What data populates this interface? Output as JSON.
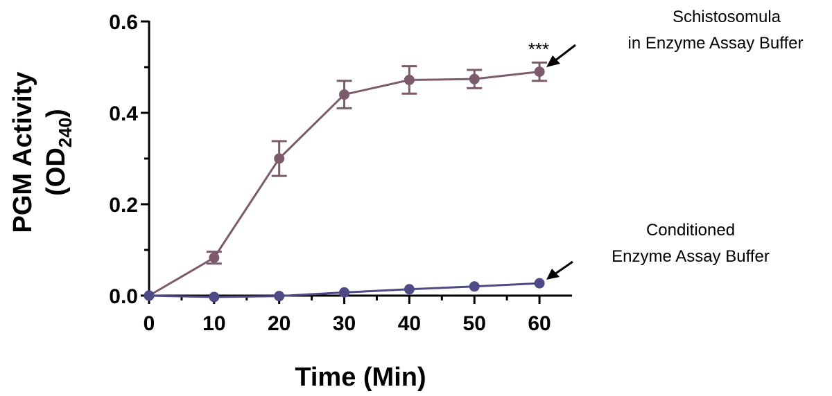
{
  "chart_data": {
    "type": "line",
    "xlabel": "Time (Min)",
    "ylabel_line1": "PGM Activity",
    "ylabel_line2_main": "(OD",
    "ylabel_line2_sub": "240",
    "ylabel_line2_end": ")",
    "xlim": [
      0,
      65
    ],
    "ylim": [
      0,
      0.6
    ],
    "x_ticks": [
      0,
      10,
      20,
      30,
      40,
      50,
      60
    ],
    "x_tick_labels": [
      "0",
      "10",
      "20",
      "30",
      "40",
      "50",
      "60"
    ],
    "y_ticks": [
      0,
      0.2,
      0.4,
      0.6
    ],
    "y_tick_labels": [
      "0.0",
      "0.2",
      "0.4",
      "0.6"
    ],
    "grid": false,
    "series": [
      {
        "key": "schistosomula",
        "color": "#7b5b6c",
        "x": [
          0,
          10,
          20,
          30,
          40,
          50,
          60
        ],
        "y": [
          0.0,
          0.083,
          0.3,
          0.44,
          0.472,
          0.474,
          0.49
        ],
        "error": [
          0.0,
          0.013,
          0.038,
          0.03,
          0.03,
          0.02,
          0.02
        ]
      },
      {
        "key": "conditioned",
        "color": "#4d4a86",
        "x": [
          0,
          10,
          20,
          30,
          40,
          50,
          60
        ],
        "y": [
          0.0,
          -0.003,
          -0.001,
          0.007,
          0.014,
          0.02,
          0.027
        ],
        "error": [
          0,
          0,
          0,
          0,
          0,
          0,
          0
        ]
      }
    ],
    "annotations": {
      "schistosomula_line1": "Schistosomula",
      "schistosomula_line2": "in Enzyme Assay Buffer",
      "conditioned_line1": "Conditioned",
      "conditioned_line2": "Enzyme Assay Buffer",
      "significance": "***"
    }
  }
}
